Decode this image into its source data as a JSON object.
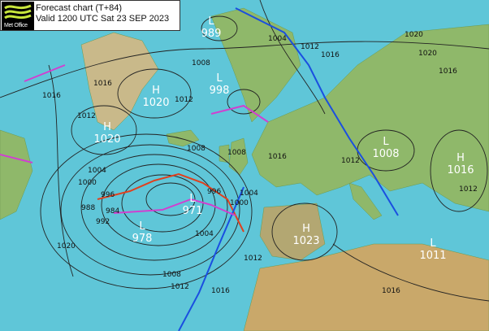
{
  "header": {
    "logo_text": "Met Office",
    "title": "Forecast chart (T+84)",
    "valid": "Valid 1200 UTC Sat 23 SEP 2023"
  },
  "colors": {
    "sea": "#5fc6d8",
    "land": "#8fb86a",
    "isobar": "#222222",
    "warm_front": "#e0401e",
    "cold_front": "#1a4fe0",
    "occluded_front": "#d040d0"
  },
  "pressure_centres": [
    {
      "type": "L",
      "value": "989"
    },
    {
      "type": "H",
      "value": "1020"
    },
    {
      "type": "L",
      "value": "998"
    },
    {
      "type": "H",
      "value": "1020"
    },
    {
      "type": "L",
      "value": "971"
    },
    {
      "type": "L",
      "value": "978"
    },
    {
      "type": "H",
      "value": "1023"
    },
    {
      "type": "L",
      "value": "1008"
    },
    {
      "type": "H",
      "value": "1016"
    },
    {
      "type": "L",
      "value": "1011"
    }
  ],
  "isobar_labels": [
    "1016",
    "1012",
    "1008",
    "1004",
    "1000",
    "996",
    "992",
    "988",
    "984",
    "1004",
    "1008",
    "1012",
    "1016",
    "1020",
    "1012",
    "1016",
    "1020",
    "1004",
    "1008",
    "1012",
    "1016",
    "1020",
    "1016",
    "1012",
    "1016",
    "1012",
    "1008",
    "1012",
    "1016",
    "1004",
    "1000",
    "996"
  ]
}
